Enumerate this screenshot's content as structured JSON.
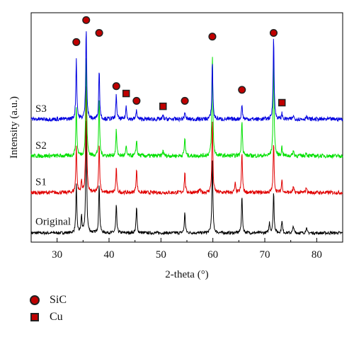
{
  "chart_data": {
    "type": "line",
    "xlabel": "2-theta (°)",
    "ylabel": "Intensity (a.u.)",
    "xlim": [
      25,
      85
    ],
    "xticks": [
      30,
      40,
      50,
      60,
      70,
      80
    ],
    "grid": false,
    "series": [
      {
        "name": "Original",
        "color": "#000000",
        "baseline": 0.05,
        "noise": 0.008,
        "peaks": [
          [
            33.7,
            0.26
          ],
          [
            34.7,
            0.09
          ],
          [
            35.6,
            0.62
          ],
          [
            38.1,
            0.27
          ],
          [
            41.4,
            0.15
          ],
          [
            45.3,
            0.14
          ],
          [
            54.6,
            0.11
          ],
          [
            59.9,
            0.4
          ],
          [
            65.6,
            0.2
          ],
          [
            70.9,
            0.06
          ],
          [
            71.7,
            0.22
          ],
          [
            73.3,
            0.07
          ],
          [
            75.5,
            0.04
          ],
          [
            78.0,
            0.03
          ]
        ]
      },
      {
        "name": "S1",
        "color": "#e00000",
        "baseline": 0.27,
        "noise": 0.01,
        "peaks": [
          [
            33.7,
            0.26
          ],
          [
            34.7,
            0.06
          ],
          [
            35.6,
            0.6
          ],
          [
            38.1,
            0.27
          ],
          [
            41.4,
            0.13
          ],
          [
            45.3,
            0.13
          ],
          [
            54.6,
            0.11
          ],
          [
            57.5,
            0.02
          ],
          [
            59.9,
            0.4
          ],
          [
            64.3,
            0.05
          ],
          [
            65.6,
            0.22
          ],
          [
            71.7,
            0.27
          ],
          [
            73.3,
            0.07
          ],
          [
            75.5,
            0.03
          ],
          [
            78.0,
            0.03
          ]
        ]
      },
      {
        "name": "S2",
        "color": "#00e000",
        "baseline": 0.47,
        "noise": 0.011,
        "peaks": [
          [
            33.7,
            0.27
          ],
          [
            35.6,
            0.55
          ],
          [
            38.1,
            0.3
          ],
          [
            41.4,
            0.14
          ],
          [
            43.3,
            0.05
          ],
          [
            45.3,
            0.09
          ],
          [
            50.4,
            0.03
          ],
          [
            54.6,
            0.1
          ],
          [
            59.9,
            0.55
          ],
          [
            65.6,
            0.2
          ],
          [
            71.7,
            0.55
          ],
          [
            73.3,
            0.05
          ],
          [
            75.5,
            0.03
          ],
          [
            78.0,
            0.02
          ]
        ]
      },
      {
        "name": "S3",
        "color": "#0000e0",
        "baseline": 0.67,
        "noise": 0.011,
        "peaks": [
          [
            33.7,
            0.33
          ],
          [
            35.6,
            0.5
          ],
          [
            38.1,
            0.27
          ],
          [
            41.4,
            0.13
          ],
          [
            43.3,
            0.07
          ],
          [
            45.3,
            0.05
          ],
          [
            50.4,
            0.02
          ],
          [
            54.6,
            0.04
          ],
          [
            59.9,
            0.31
          ],
          [
            65.6,
            0.08
          ],
          [
            71.7,
            0.45
          ],
          [
            73.3,
            0.03
          ],
          [
            75.5,
            0.02
          ],
          [
            78.0,
            0.02
          ]
        ]
      }
    ],
    "markers": [
      {
        "phase": "SiC",
        "x": 33.7,
        "y": 1.09
      },
      {
        "phase": "SiC",
        "x": 35.6,
        "y": 1.21
      },
      {
        "phase": "SiC",
        "x": 38.1,
        "y": 1.14
      },
      {
        "phase": "SiC",
        "x": 41.4,
        "y": 0.85
      },
      {
        "phase": "Cu",
        "x": 43.3,
        "y": 0.81
      },
      {
        "phase": "SiC",
        "x": 45.3,
        "y": 0.77
      },
      {
        "phase": "Cu",
        "x": 50.4,
        "y": 0.74
      },
      {
        "phase": "SiC",
        "x": 54.6,
        "y": 0.77
      },
      {
        "phase": "SiC",
        "x": 59.9,
        "y": 1.12
      },
      {
        "phase": "SiC",
        "x": 65.6,
        "y": 0.83
      },
      {
        "phase": "SiC",
        "x": 71.7,
        "y": 1.14
      },
      {
        "phase": "Cu",
        "x": 73.3,
        "y": 0.76
      }
    ],
    "legend": [
      {
        "label": "SiC",
        "symbol": "circle"
      },
      {
        "label": "Cu",
        "symbol": "square"
      }
    ],
    "legend_placement": "below-left",
    "marker_fill": "#c00000"
  }
}
